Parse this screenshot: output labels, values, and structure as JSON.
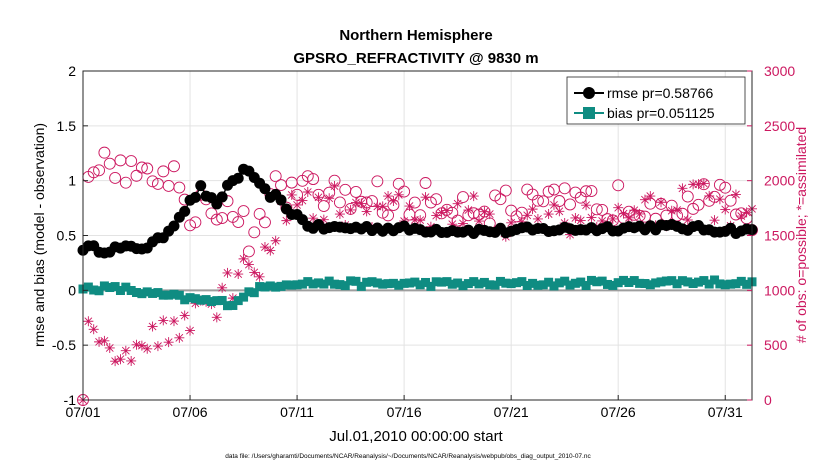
{
  "chart_data": {
    "type": "line",
    "title": "Northern Hemisphere",
    "subtitle": "GPSRO_REFRACTIVITY @ 9830 m",
    "xlabel": "Jul.01,2010 00:00:00 start",
    "ylabel_left": "rmse and bias (model - observation)",
    "ylabel_right": "# of obs: o=possible; *=assimilated",
    "footnote": "data file: /Users/gharamti/Documents/NCAR/Reanalysis/~/Documents/NCAR/Reanalysis/webpub/obs_diag_output_2010-07.nc",
    "x_ticks": [
      "07/01",
      "07/06",
      "07/11",
      "07/16",
      "07/21",
      "07/26",
      "07/31"
    ],
    "x_tick_days": [
      1,
      6,
      11,
      16,
      21,
      26,
      31
    ],
    "xlim": [
      1,
      32.25
    ],
    "ylim_left": [
      -1,
      2
    ],
    "y_ticks_left": [
      "-1",
      "-0.5",
      "0",
      "0.5",
      "1",
      "1.5",
      "2"
    ],
    "ylim_right": [
      0,
      3000
    ],
    "y_ticks_right": [
      "0",
      "500",
      "1000",
      "1500",
      "2000",
      "2500",
      "3000"
    ],
    "legend": [
      "rmse pr=0.58766",
      "bias pr=0.051125"
    ],
    "colors": {
      "rmse": "#000000",
      "bias": "#0f8c82",
      "obs": "#cc1860",
      "zero_line": "#9e9e9e",
      "grid": "#e3e3e3"
    },
    "series": [
      {
        "name": "rmse",
        "axis": "left",
        "anchors": [
          [
            1,
            0.39
          ],
          [
            1.5,
            0.38
          ],
          [
            2,
            0.37
          ],
          [
            2.5,
            0.38
          ],
          [
            3,
            0.38
          ],
          [
            3.5,
            0.39
          ],
          [
            4,
            0.4
          ],
          [
            4.5,
            0.45
          ],
          [
            5,
            0.55
          ],
          [
            5.5,
            0.68
          ],
          [
            6,
            0.8
          ],
          [
            6.5,
            0.93
          ],
          [
            7,
            0.82
          ],
          [
            7.3,
            0.75
          ],
          [
            7.6,
            0.92
          ],
          [
            8,
            1.0
          ],
          [
            8.5,
            1.08
          ],
          [
            8.8,
            1.1
          ],
          [
            9,
            1.0
          ],
          [
            9.5,
            0.9
          ],
          [
            10,
            0.85
          ],
          [
            10.5,
            0.75
          ],
          [
            11,
            0.68
          ],
          [
            11.5,
            0.6
          ],
          [
            12,
            0.57
          ],
          [
            14,
            0.57
          ],
          [
            16,
            0.56
          ],
          [
            18,
            0.55
          ],
          [
            20,
            0.54
          ],
          [
            22,
            0.55
          ],
          [
            24,
            0.56
          ],
          [
            26,
            0.57
          ],
          [
            28,
            0.58
          ],
          [
            30,
            0.56
          ],
          [
            32.25,
            0.54
          ]
        ],
        "noise": 0.03
      },
      {
        "name": "bias",
        "axis": "left",
        "anchors": [
          [
            1,
            0.02
          ],
          [
            2,
            0.02
          ],
          [
            3,
            0.01
          ],
          [
            4,
            -0.03
          ],
          [
            5,
            -0.05
          ],
          [
            6,
            -0.08
          ],
          [
            7,
            -0.1
          ],
          [
            8,
            -0.12
          ],
          [
            8.5,
            -0.05
          ],
          [
            9,
            0.0
          ],
          [
            10,
            0.05
          ],
          [
            11,
            0.07
          ],
          [
            14,
            0.06
          ],
          [
            18,
            0.06
          ],
          [
            22,
            0.06
          ],
          [
            26,
            0.07
          ],
          [
            30,
            0.08
          ],
          [
            32.25,
            0.06
          ]
        ],
        "noise": 0.025
      },
      {
        "name": "obs_possible",
        "axis": "right",
        "marker": "circle",
        "anchors": [
          [
            1,
            0
          ],
          [
            1.2,
            2200
          ],
          [
            2,
            2100
          ],
          [
            3,
            2150
          ],
          [
            4,
            2000
          ],
          [
            5,
            2100
          ],
          [
            6,
            1750
          ],
          [
            7,
            1800
          ],
          [
            8,
            1700
          ],
          [
            9,
            1450
          ],
          [
            10,
            1900
          ],
          [
            11,
            1900
          ],
          [
            14,
            1850
          ],
          [
            18,
            1800
          ],
          [
            22,
            1750
          ],
          [
            26,
            1800
          ],
          [
            30,
            1850
          ],
          [
            32.25,
            1700
          ]
        ],
        "noise": 170
      },
      {
        "name": "obs_assimilated",
        "axis": "right",
        "marker": "asterisk",
        "anchors": [
          [
            1,
            0
          ],
          [
            1.2,
            550
          ],
          [
            2,
            500
          ],
          [
            3,
            550
          ],
          [
            4,
            500
          ],
          [
            5,
            700
          ],
          [
            6,
            750
          ],
          [
            7,
            900
          ],
          [
            8,
            1000
          ],
          [
            9,
            1200
          ],
          [
            10,
            1600
          ],
          [
            11,
            1800
          ],
          [
            14,
            1750
          ],
          [
            18,
            1700
          ],
          [
            22,
            1650
          ],
          [
            26,
            1700
          ],
          [
            30,
            1800
          ],
          [
            32.25,
            1650
          ]
        ],
        "noise": 190
      }
    ]
  }
}
